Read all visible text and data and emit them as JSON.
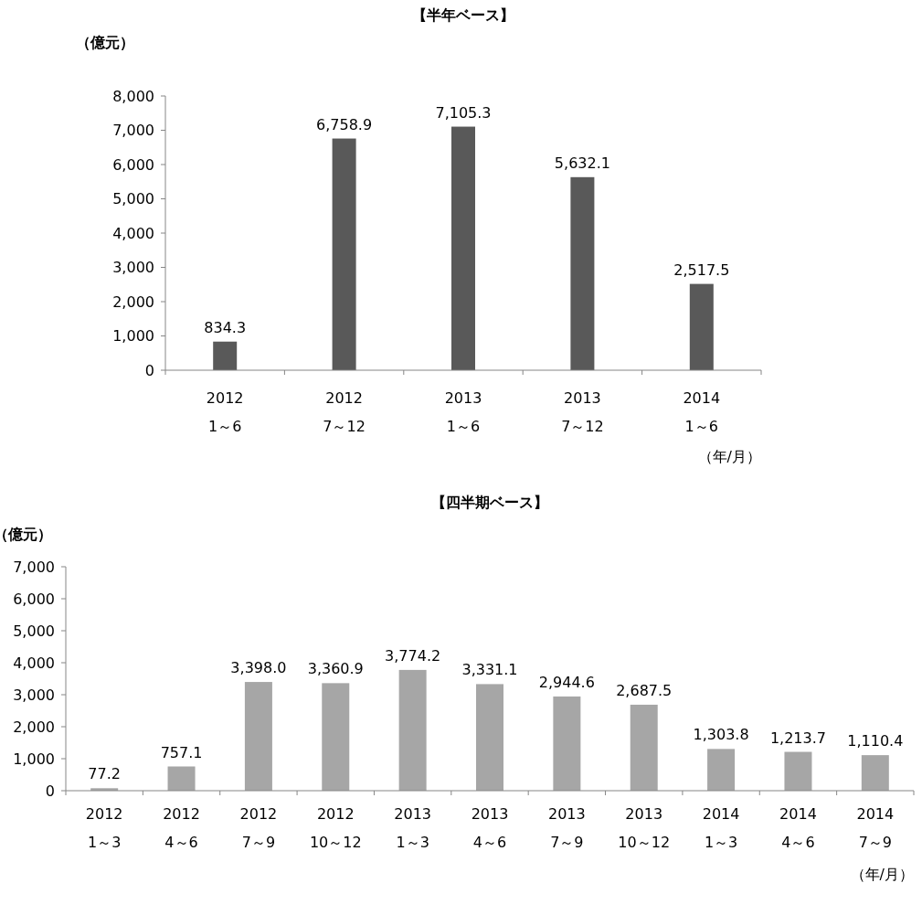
{
  "chart_data": [
    {
      "type": "bar",
      "title": "【半年ベース】",
      "ylabel": "（億元）",
      "xlabel": "（年/月）",
      "categories": [
        "2012\n1～6",
        "2012\n7～12",
        "2013\n1～6",
        "2013\n7～12",
        "2014\n1～6"
      ],
      "values": [
        834.3,
        6758.9,
        7105.3,
        5632.1,
        2517.5
      ],
      "color": "#595959",
      "ylim": [
        0,
        8000
      ],
      "yticks": [
        {
          "value": 0,
          "label": "0"
        },
        {
          "value": 1000,
          "label": "1,000"
        },
        {
          "value": 2000,
          "label": "2,000"
        },
        {
          "value": 3000,
          "label": "3,000"
        },
        {
          "value": 4000,
          "label": "4,000"
        },
        {
          "value": 5000,
          "label": "5,000"
        },
        {
          "value": 6000,
          "label": "6,000"
        },
        {
          "value": 7000,
          "label": "7,000"
        },
        {
          "value": 8000,
          "label": "8,000"
        }
      ],
      "value_labels": [
        "834.3",
        "6,758.9",
        "7,105.3",
        "5,632.1",
        "2,517.5"
      ],
      "grid": false
    },
    {
      "type": "bar",
      "title": "【四半期ベース】",
      "ylabel": "（億元）",
      "xlabel": "（年/月）",
      "categories": [
        "2012\n1～3",
        "2012\n4～6",
        "2012\n7～9",
        "2012\n10～12",
        "2013\n1～3",
        "2013\n4～6",
        "2013\n7～9",
        "2013\n10～12",
        "2014\n1～3",
        "2014\n4～6",
        "2014\n7～9"
      ],
      "values": [
        77.2,
        757.1,
        3398.0,
        3360.9,
        3774.2,
        3331.1,
        2944.6,
        2687.5,
        1303.8,
        1213.7,
        1110.4
      ],
      "color": "#a6a6a6",
      "ylim": [
        0,
        7000
      ],
      "yticks": [
        {
          "value": 0,
          "label": "0"
        },
        {
          "value": 1000,
          "label": "1,000"
        },
        {
          "value": 2000,
          "label": "2,000"
        },
        {
          "value": 3000,
          "label": "3,000"
        },
        {
          "value": 4000,
          "label": "4,000"
        },
        {
          "value": 5000,
          "label": "5,000"
        },
        {
          "value": 6000,
          "label": "6,000"
        },
        {
          "value": 7000,
          "label": "7,000"
        }
      ],
      "value_labels": [
        "77.2",
        "757.1",
        "3,398.0",
        "3,360.9",
        "3,774.2",
        "3,331.1",
        "2,944.6",
        "2,687.5",
        "1,303.8",
        "1,213.7",
        "1,110.4"
      ],
      "grid": false
    }
  ]
}
